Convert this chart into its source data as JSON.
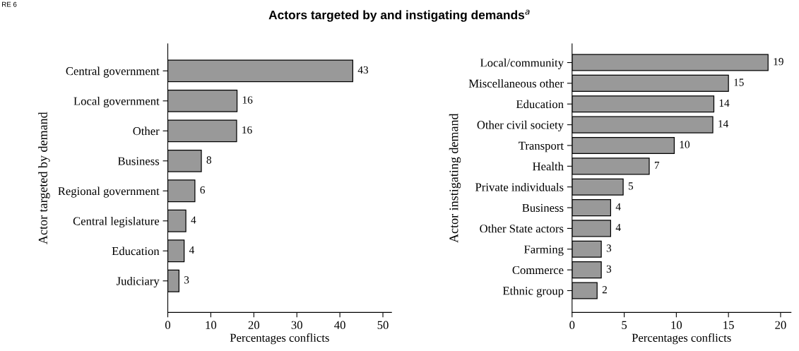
{
  "chart_data": [
    {
      "type": "bar",
      "orientation": "horizontal",
      "title": "Actors targeted by and instigating demands$^{a}$",
      "xlabel": "Percentages conflicts",
      "ylabel": "Actor targeted by demand",
      "categories": [
        "Central government",
        "Local government",
        "Other",
        "Business",
        "Regional government",
        "Central legislature",
        "Education",
        "Judiciary"
      ],
      "values": [
        43,
        16.1,
        16,
        7.8,
        6.3,
        4.2,
        3.8,
        2.6
      ],
      "value_labels": [
        "43",
        "16",
        "16",
        "8",
        "6",
        "4",
        "4",
        "3"
      ],
      "color": "#999999",
      "xlim": [
        0,
        52
      ],
      "xticks": [
        0,
        10,
        20,
        30,
        40,
        50
      ],
      "grid": false,
      "legend": false,
      "annotations": [
        "RE 6"
      ]
    },
    {
      "type": "bar",
      "orientation": "horizontal",
      "xlabel": "Percentages conflicts",
      "ylabel": "Actor instigating demand",
      "categories": [
        "Local/community",
        "Miscellaneous other",
        "Education",
        "Other civil society",
        "Transport",
        "Health",
        "Private individuals",
        "Business",
        "Other State actors",
        "Farming",
        "Commerce",
        "Ethnic group"
      ],
      "values": [
        18.8,
        15,
        13.6,
        13.5,
        9.8,
        7.4,
        4.9,
        3.7,
        3.7,
        2.8,
        2.8,
        2.4
      ],
      "value_labels": [
        "19",
        "15",
        "14",
        "14",
        "10",
        "7",
        "5",
        "4",
        "4",
        "3",
        "3",
        "2"
      ],
      "color": "#999999",
      "xlim": [
        0,
        21
      ],
      "xticks": [
        0,
        5,
        10,
        15,
        20
      ],
      "grid": false,
      "legend": false
    }
  ]
}
